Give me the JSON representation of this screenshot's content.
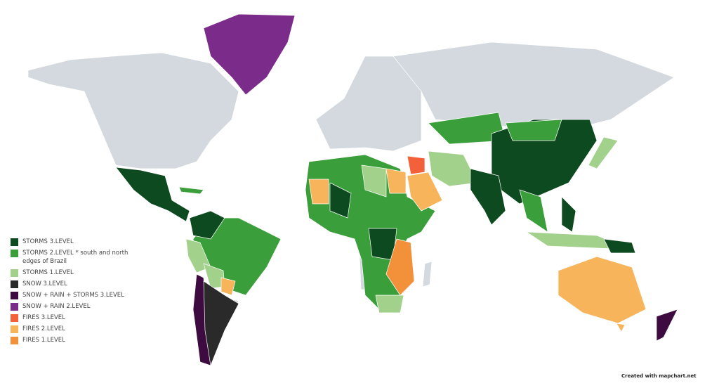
{
  "legend": [
    {
      "label": "STORMS 3.LEVEL",
      "color": "#0d4a1f"
    },
    {
      "label": "STORMS 2.LEVEL * south and north edges of Brazil",
      "color": "#3a9e3a"
    },
    {
      "label": "STORMS 1.LEVEL",
      "color": "#a2d18c"
    },
    {
      "label": "SNOW 3.LEVEL",
      "color": "#2a2a2a"
    },
    {
      "label": "SNOW + RAIN + STORMS 3.LEVEL",
      "color": "#3d0b40"
    },
    {
      "label": "SNOW + RAIN 2.LEVEL",
      "color": "#7b2c8b"
    },
    {
      "label": "FIRES 3.LEVEL",
      "color": "#f2613a"
    },
    {
      "label": "FIRES 2.LEVEL",
      "color": "#f8b45a"
    },
    {
      "label": "FIRES 1.LEVEL",
      "color": "#f3913b"
    }
  ],
  "credit": "Created with mapchart.net"
}
